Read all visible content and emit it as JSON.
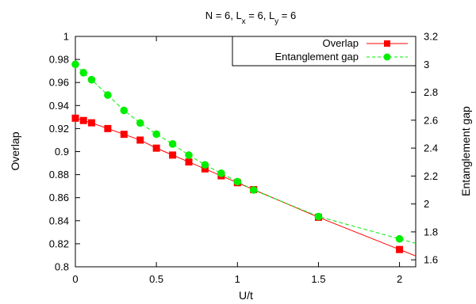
{
  "chart_data": {
    "type": "line",
    "title": {
      "main": "N = 6, L",
      "sub_x": "x",
      "mid": " = 6, L",
      "sub_y": "y",
      "tail": " = 6"
    },
    "xlabel": "U/t",
    "ylabel_left": "Overlap",
    "ylabel_right": "Entanglement gap",
    "xlim": [
      0,
      2.1
    ],
    "ylim_left": [
      0.8,
      1.0
    ],
    "ylim_right": [
      1.55,
      3.2
    ],
    "x_ticks": [
      0,
      0.5,
      1,
      1.5,
      2
    ],
    "x_tick_labels": [
      "0",
      "0.5",
      "1",
      "1.5",
      "2"
    ],
    "y_left_ticks": [
      0.8,
      0.82,
      0.84,
      0.86,
      0.88,
      0.9,
      0.92,
      0.94,
      0.96,
      0.98,
      1.0
    ],
    "y_left_tick_labels": [
      "0.8",
      "0.82",
      "0.84",
      "0.86",
      "0.88",
      "0.9",
      "0.92",
      "0.94",
      "0.96",
      "0.98",
      "1"
    ],
    "y_right_ticks": [
      1.6,
      1.8,
      2.0,
      2.2,
      2.4,
      2.6,
      2.8,
      3.0,
      3.2
    ],
    "y_right_tick_labels": [
      "1.6",
      "1.8",
      "2",
      "2.2",
      "2.4",
      "2.6",
      "2.8",
      "3",
      "3.2"
    ],
    "grid": false,
    "legend_position": "top-right",
    "series": [
      {
        "name": "Overlap",
        "axis": "left",
        "color": "#ff0000",
        "marker": "square",
        "line_style": "solid",
        "x": [
          0,
          0.05,
          0.1,
          0.2,
          0.3,
          0.4,
          0.5,
          0.6,
          0.7,
          0.8,
          0.9,
          1.0,
          1.1,
          1.5,
          2.0
        ],
        "y": [
          0.929,
          0.927,
          0.925,
          0.92,
          0.915,
          0.91,
          0.903,
          0.897,
          0.891,
          0.885,
          0.879,
          0.873,
          0.867,
          0.843,
          0.815
        ]
      },
      {
        "name": "Entanglement gap",
        "axis": "right",
        "color": "#00ee00",
        "marker": "circle",
        "line_style": "dashed",
        "x": [
          0,
          0.05,
          0.1,
          0.2,
          0.3,
          0.4,
          0.5,
          0.6,
          0.7,
          0.8,
          0.9,
          1.0,
          1.1,
          1.5,
          2.0
        ],
        "y": [
          3.0,
          2.94,
          2.89,
          2.78,
          2.67,
          2.58,
          2.5,
          2.43,
          2.35,
          2.28,
          2.22,
          2.16,
          2.1,
          1.91,
          1.75
        ]
      }
    ]
  }
}
